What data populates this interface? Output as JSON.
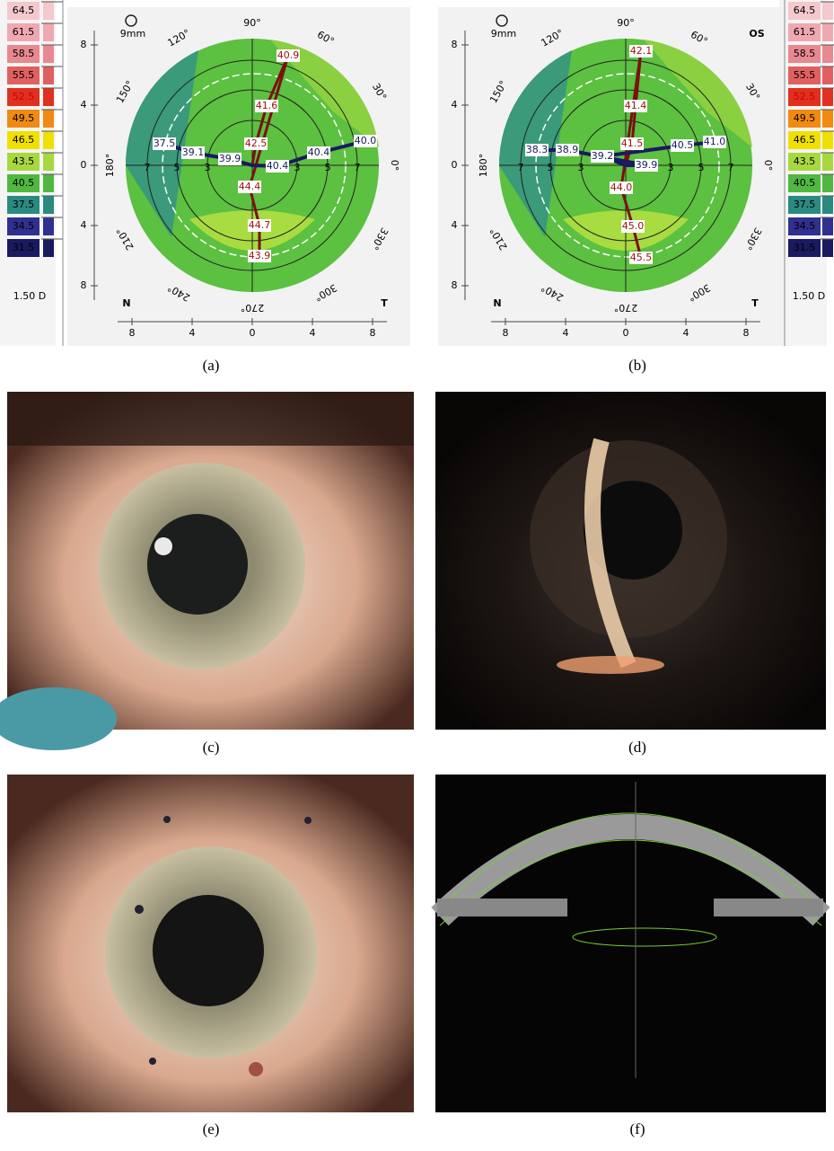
{
  "scale": [
    "64.5",
    "61.5",
    "58.5",
    "55.5",
    "52.5",
    "49.5",
    "46.5",
    "43.5",
    "40.5",
    "37.5",
    "34.5",
    "31.5"
  ],
  "scale_unit": "1.50 D",
  "panels": [
    {
      "magnifier": "9mm",
      "eye": null,
      "angles": [
        "90°",
        "120°",
        "60°",
        "150°",
        "30°",
        "180°",
        "0°",
        "210°",
        "330°",
        "240°",
        "300°",
        "270°"
      ],
      "sides": [
        "N",
        "T"
      ],
      "x_ticks": [
        "8",
        "4",
        "0",
        "4",
        "8"
      ],
      "y_ticks": [
        "8",
        "4",
        "0",
        "4",
        "8"
      ],
      "rings": [
        "7",
        "5",
        "3",
        "3",
        "5",
        "7"
      ],
      "readings": [
        "40.9",
        "41.6",
        "42.5",
        "39.9",
        "40.4",
        "39.1",
        "37.5",
        "40.4",
        "40.0",
        "44.4",
        "44.7",
        "43.9"
      ]
    },
    {
      "magnifier": "9mm",
      "eye": "OS",
      "angles": [
        "90°",
        "120°",
        "60°",
        "150°",
        "30°",
        "180°",
        "0°",
        "210°",
        "330°",
        "240°",
        "300°",
        "270°"
      ],
      "sides": [
        "N",
        "T"
      ],
      "x_ticks": [
        "8",
        "4",
        "0",
        "4",
        "8"
      ],
      "y_ticks": [
        "8",
        "4",
        "0",
        "4",
        "8"
      ],
      "rings": [
        "7",
        "5",
        "3",
        "3",
        "5",
        "7"
      ],
      "readings": [
        "42.1",
        "41.4",
        "41.5",
        "39.9",
        "39.2",
        "38.9",
        "38.3",
        "40.5",
        "41.0",
        "44.0",
        "45.0",
        "45.5"
      ]
    }
  ],
  "captions": [
    "(a)",
    "(b)",
    "(c)",
    "(d)",
    "(e)",
    "(f)"
  ]
}
